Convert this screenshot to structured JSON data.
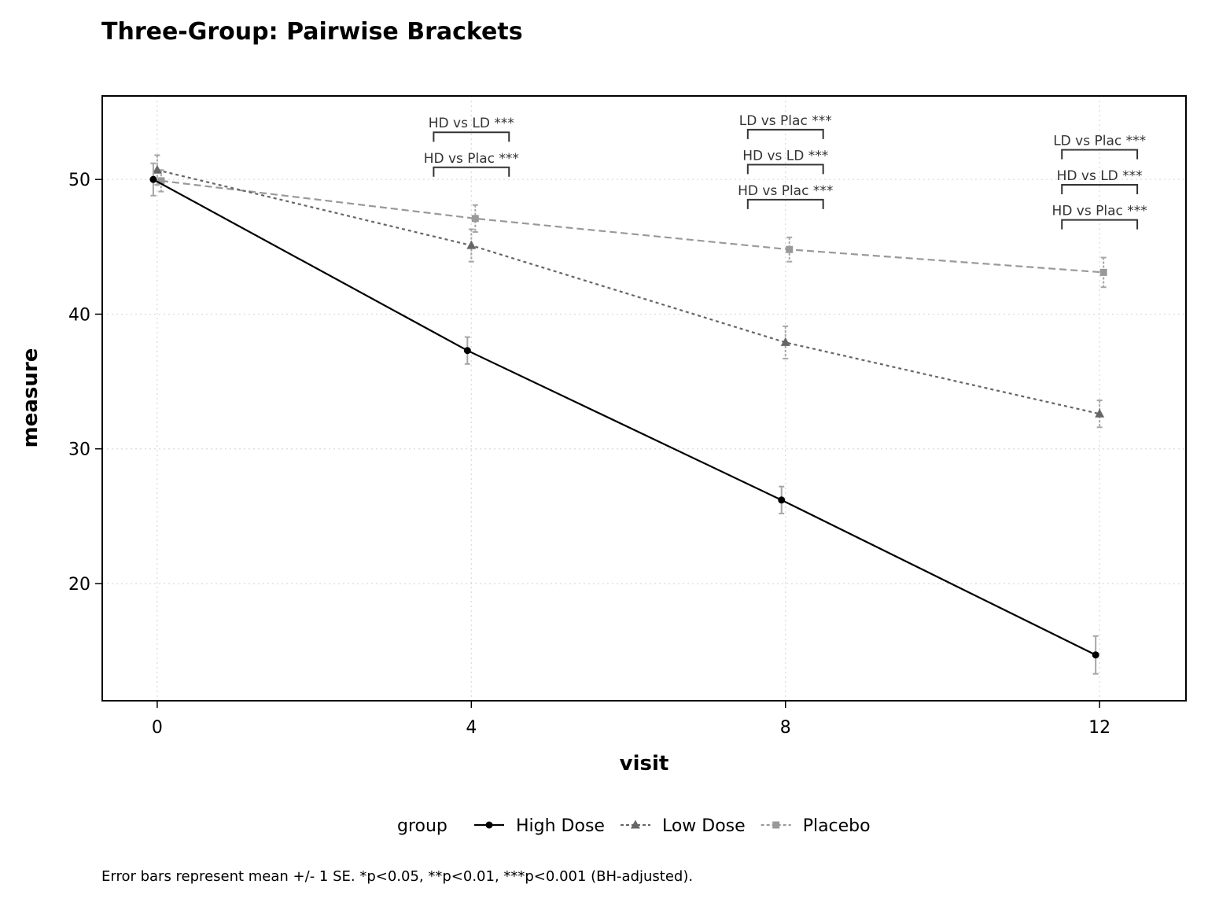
{
  "chart_data": {
    "type": "line",
    "title": "Three-Group: Pairwise Brackets",
    "xlabel": "visit",
    "ylabel": "measure",
    "x": [
      0,
      4,
      8,
      12
    ],
    "xlim": [
      -0.7,
      13.1
    ],
    "ylim": [
      11.3,
      56.2
    ],
    "xticks": [
      0,
      4,
      8,
      12
    ],
    "yticks": [
      20,
      30,
      40,
      50
    ],
    "grid": true,
    "legend_position": "bottom",
    "legend_title": "group",
    "series": [
      {
        "name": "High Dose",
        "x": [
          -0.05,
          3.95,
          7.95,
          11.95
        ],
        "values": [
          50.0,
          37.3,
          26.2,
          14.7
        ],
        "se": [
          1.2,
          1.0,
          1.0,
          1.4
        ],
        "color": "#000000",
        "dash": "",
        "marker": "circle"
      },
      {
        "name": "Low Dose",
        "x": [
          0.0,
          4.0,
          8.0,
          12.0
        ],
        "values": [
          50.7,
          45.1,
          37.9,
          32.6
        ],
        "se": [
          1.1,
          1.2,
          1.2,
          1.0
        ],
        "color": "#666666",
        "dash": "4,4",
        "marker": "triangle"
      },
      {
        "name": "Placebo",
        "x": [
          0.05,
          4.05,
          8.05,
          12.05
        ],
        "values": [
          49.9,
          47.1,
          44.8,
          43.1
        ],
        "se": [
          0.8,
          1.0,
          0.9,
          1.1
        ],
        "color": "#999999",
        "dash": "9,5",
        "marker": "square"
      }
    ],
    "brackets": [
      {
        "x1": 3.52,
        "x2": 4.48,
        "y": 53.5,
        "label": "HD vs LD ***"
      },
      {
        "x1": 3.52,
        "x2": 4.48,
        "y": 50.9,
        "label": "HD vs Plac ***"
      },
      {
        "x1": 7.52,
        "x2": 8.48,
        "y": 53.7,
        "label": "LD vs Plac ***"
      },
      {
        "x1": 7.52,
        "x2": 8.48,
        "y": 51.1,
        "label": "HD vs LD ***"
      },
      {
        "x1": 7.52,
        "x2": 8.48,
        "y": 48.5,
        "label": "HD vs Plac ***"
      },
      {
        "x1": 11.52,
        "x2": 12.48,
        "y": 52.2,
        "label": "LD vs Plac ***"
      },
      {
        "x1": 11.52,
        "x2": 12.48,
        "y": 49.6,
        "label": "HD vs LD ***"
      },
      {
        "x1": 11.52,
        "x2": 12.48,
        "y": 47.0,
        "label": "HD vs Plac ***"
      }
    ],
    "caption": "Error bars represent mean +/- 1 SE. *p<0.05, **p<0.01, ***p<0.001 (BH-adjusted)."
  }
}
